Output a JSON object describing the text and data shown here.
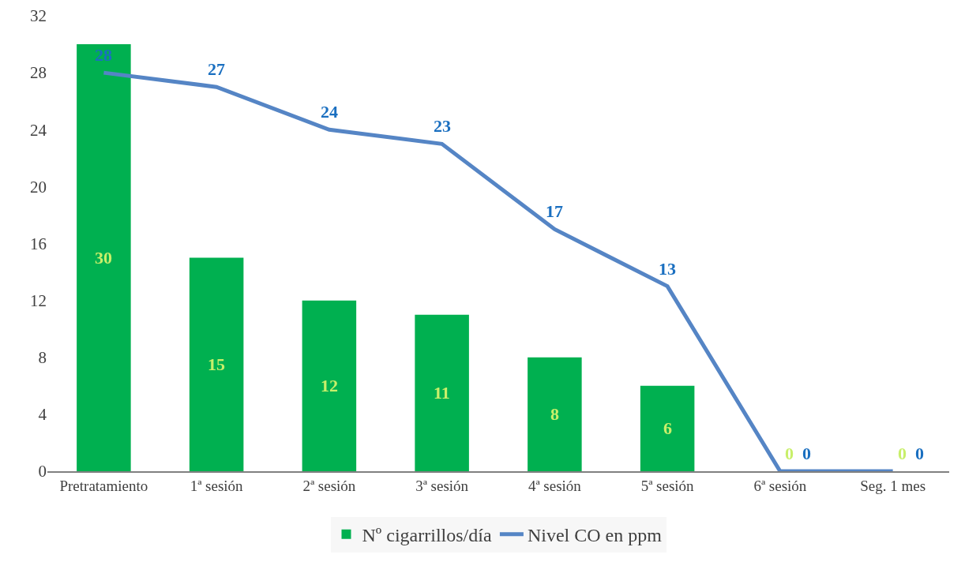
{
  "chart_data": {
    "type": "bar",
    "categories": [
      "Pretratamiento",
      "1ª sesión",
      "2ª sesión",
      "3ª sesión",
      "4ª sesión",
      "5ª sesión",
      "6ª sesión",
      "Seg. 1 mes"
    ],
    "series": [
      {
        "name": "Nº cigarrillos/día",
        "color": "#00b050",
        "values": [
          30,
          15,
          12,
          11,
          8,
          6,
          0,
          0
        ]
      },
      {
        "name": "Nivel CO en ppm",
        "type": "line",
        "color": "#5585c5",
        "values": [
          28,
          27,
          24,
          23,
          17,
          13,
          0,
          0
        ]
      }
    ],
    "ylim": [
      0,
      32
    ],
    "yticks": [
      0,
      4,
      8,
      12,
      16,
      20,
      24,
      28,
      32
    ],
    "data_labels": true,
    "grid": false,
    "legend": "bottom",
    "marker": "none",
    "line_style": "solid"
  }
}
